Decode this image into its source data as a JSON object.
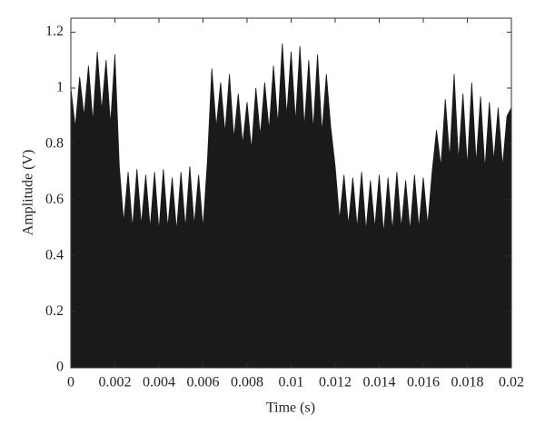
{
  "chart_data": {
    "type": "area",
    "xlabel": "Time (s)",
    "ylabel": "Amplitude (V)",
    "x": [
      0,
      0.0002,
      0.0004,
      0.0006,
      0.0008,
      0.001,
      0.0012,
      0.0014,
      0.0016,
      0.0018,
      0.002,
      0.0022,
      0.0024,
      0.0026,
      0.0028,
      0.003,
      0.0032,
      0.0034,
      0.0036,
      0.0038,
      0.004,
      0.0042,
      0.0044,
      0.0046,
      0.0048,
      0.005,
      0.0052,
      0.0054,
      0.0056,
      0.0058,
      0.006,
      0.0062,
      0.0064,
      0.0066,
      0.0068,
      0.007,
      0.0072,
      0.0074,
      0.0076,
      0.0078,
      0.008,
      0.0082,
      0.0084,
      0.0086,
      0.0088,
      0.009,
      0.0092,
      0.0094,
      0.0096,
      0.0098,
      0.01,
      0.0102,
      0.0104,
      0.0106,
      0.0108,
      0.011,
      0.0112,
      0.0114,
      0.0116,
      0.0118,
      0.012,
      0.0122,
      0.0124,
      0.0126,
      0.0128,
      0.013,
      0.0132,
      0.0134,
      0.0136,
      0.0138,
      0.014,
      0.0142,
      0.0144,
      0.0146,
      0.0148,
      0.015,
      0.0152,
      0.0154,
      0.0156,
      0.0158,
      0.016,
      0.0162,
      0.0164,
      0.0166,
      0.0168,
      0.017,
      0.0172,
      0.0174,
      0.0176,
      0.0178,
      0.018,
      0.0182,
      0.0184,
      0.0186,
      0.0188,
      0.019,
      0.0192,
      0.0194,
      0.0196,
      0.0198,
      0.02
    ],
    "values": [
      1.0,
      0.86,
      1.04,
      0.9,
      1.08,
      0.88,
      1.13,
      0.92,
      1.1,
      0.87,
      1.12,
      0.72,
      0.52,
      0.7,
      0.5,
      0.71,
      0.51,
      0.69,
      0.5,
      0.7,
      0.49,
      0.71,
      0.5,
      0.68,
      0.49,
      0.7,
      0.5,
      0.72,
      0.51,
      0.69,
      0.5,
      0.74,
      1.07,
      0.86,
      1.02,
      0.84,
      1.05,
      0.82,
      0.98,
      0.8,
      0.95,
      0.78,
      1.0,
      0.83,
      1.02,
      0.85,
      1.08,
      0.87,
      1.16,
      0.9,
      1.13,
      0.88,
      1.15,
      0.86,
      1.1,
      0.85,
      1.12,
      0.84,
      1.05,
      0.86,
      0.72,
      0.53,
      0.69,
      0.51,
      0.68,
      0.5,
      0.7,
      0.49,
      0.67,
      0.5,
      0.69,
      0.48,
      0.68,
      0.49,
      0.7,
      0.5,
      0.67,
      0.49,
      0.69,
      0.5,
      0.68,
      0.51,
      0.7,
      0.85,
      0.72,
      0.96,
      0.75,
      1.05,
      0.74,
      0.98,
      0.72,
      1.02,
      0.73,
      0.97,
      0.71,
      0.95,
      0.74,
      0.93,
      0.72,
      0.9,
      0.93
    ],
    "color": "#1a1a1a",
    "xlim": [
      0,
      0.02
    ],
    "xticks": [
      0,
      0.002,
      0.004,
      0.006,
      0.008,
      0.01,
      0.012,
      0.014,
      0.016,
      0.018,
      0.02
    ],
    "ylim": [
      0,
      1.25
    ],
    "yticks": [
      0,
      0.2,
      0.4,
      0.6,
      0.8,
      1,
      1.2
    ]
  }
}
